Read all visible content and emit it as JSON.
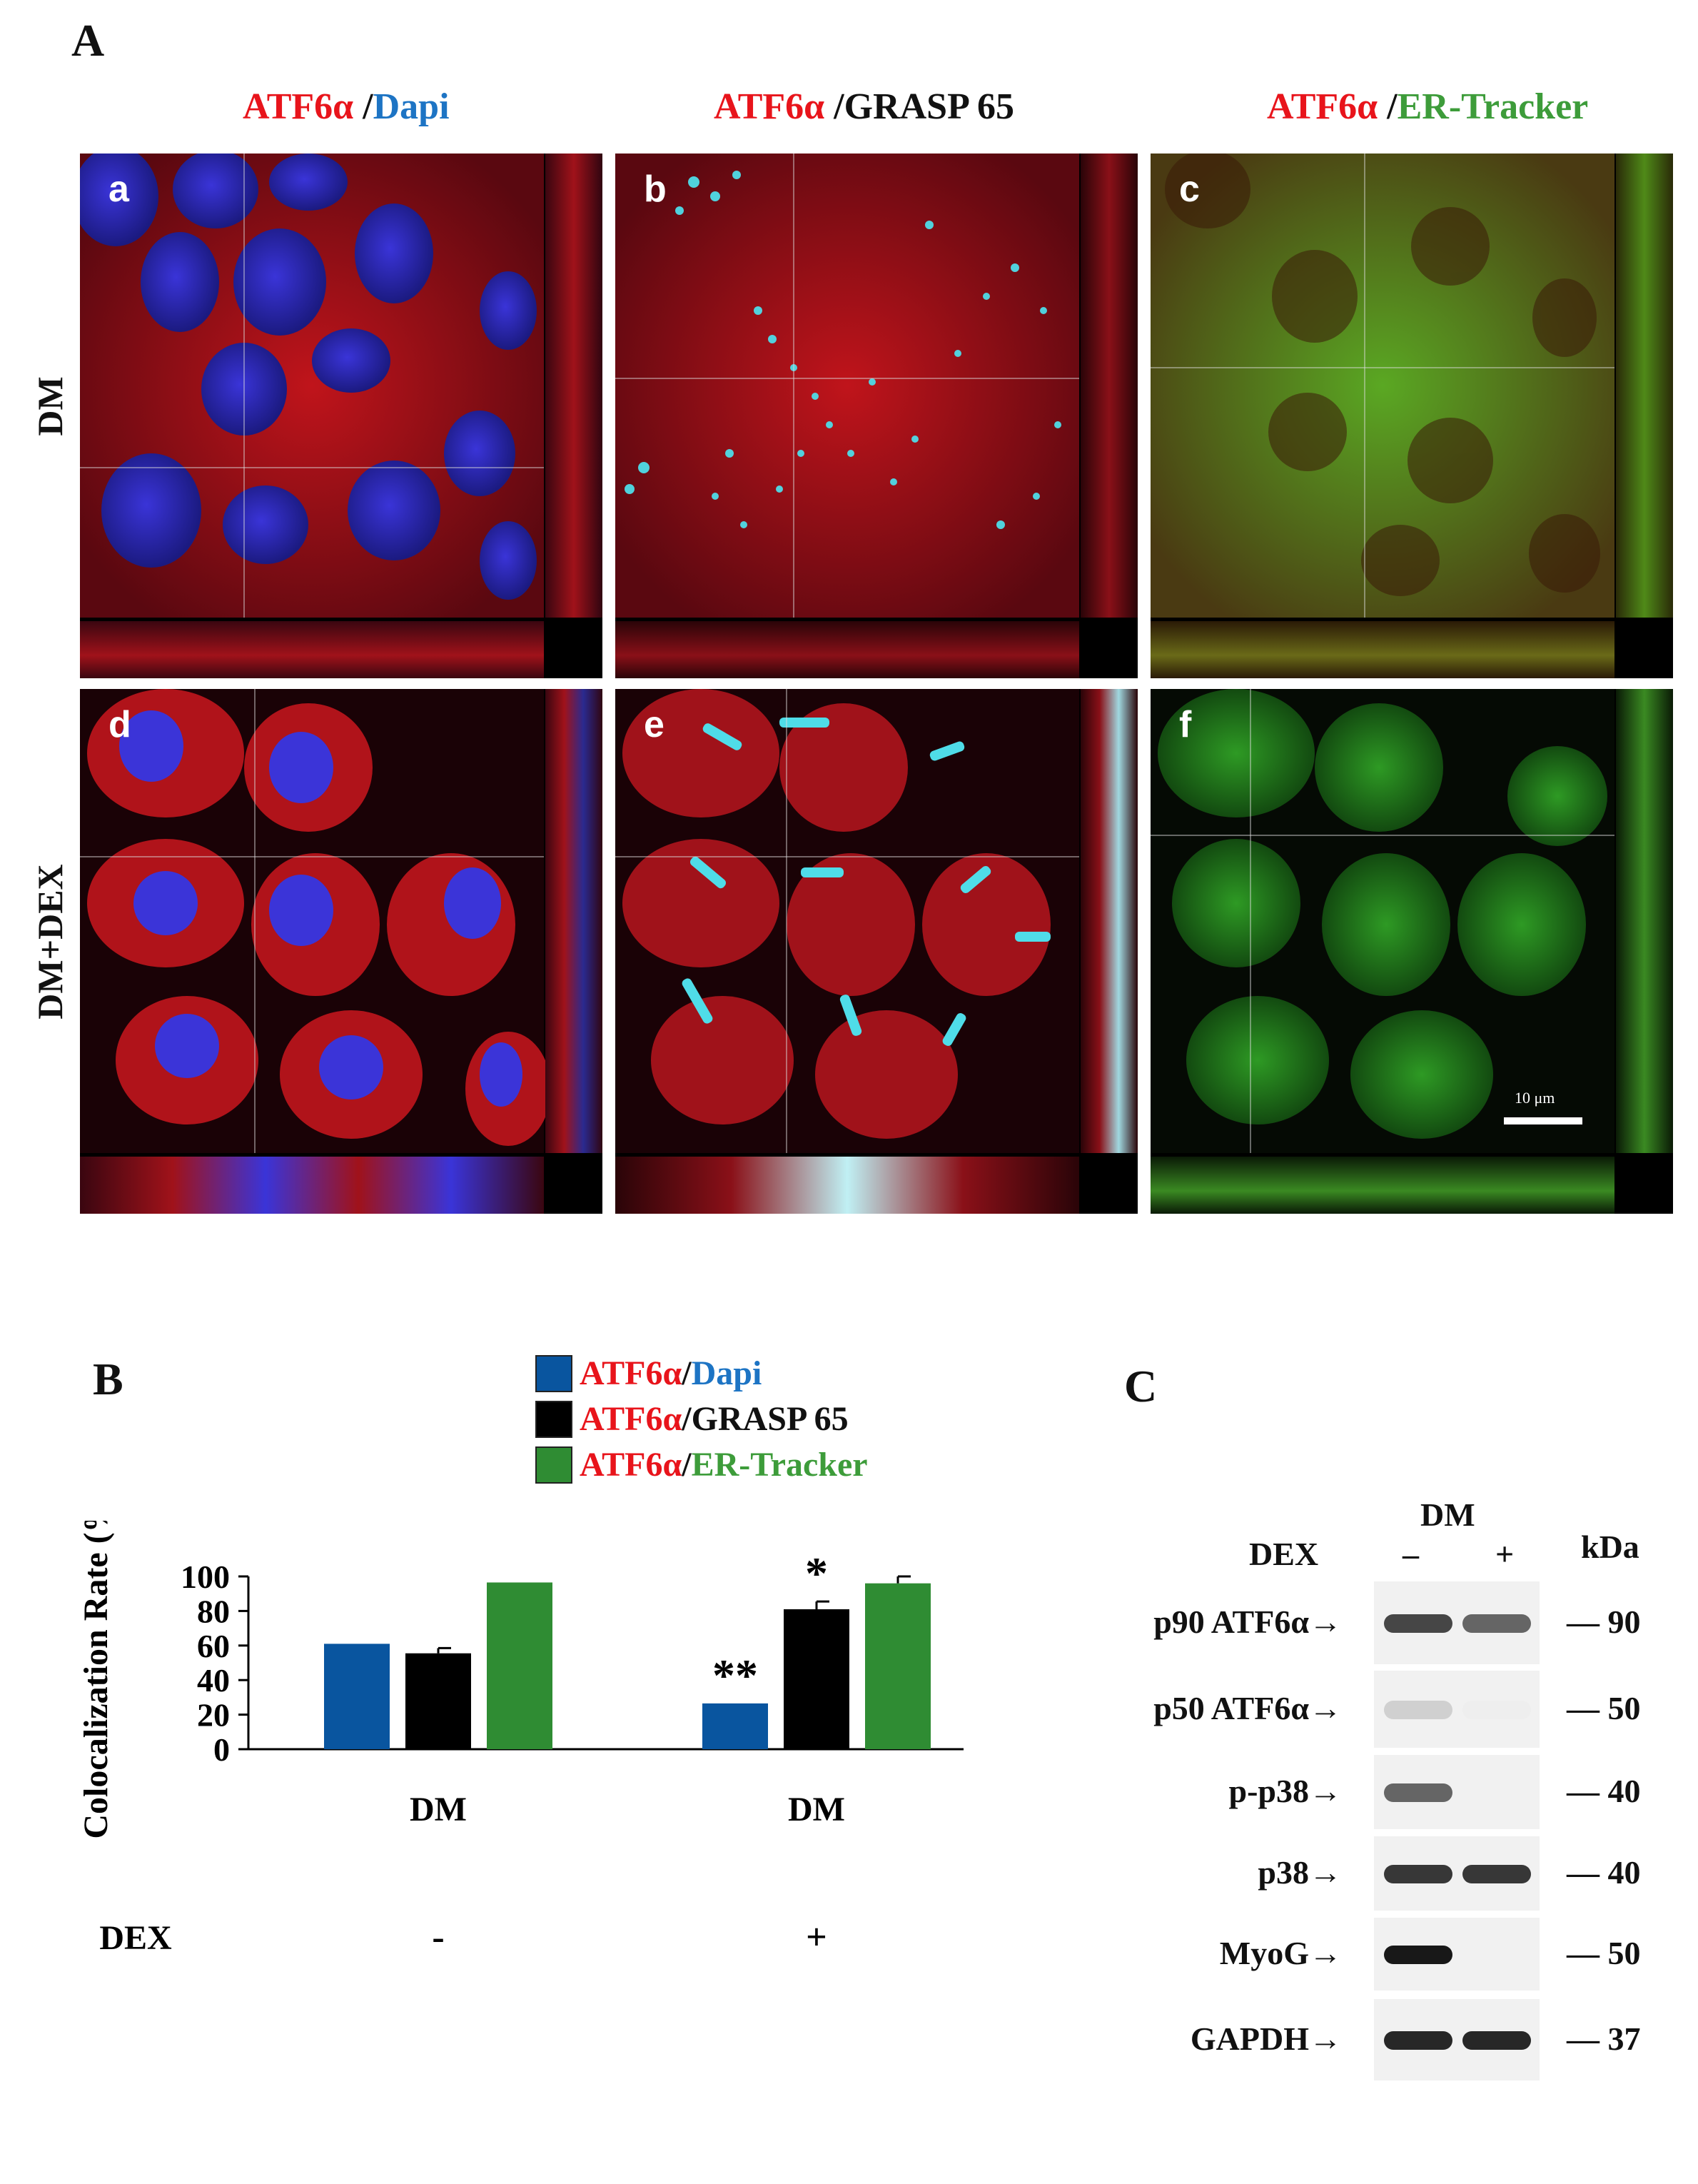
{
  "colors": {
    "red": "#e8141b",
    "blue": "#1d74c4",
    "green": "#3d9c3a",
    "bar_blue": "#09559f",
    "bar_black": "#000000",
    "bar_green": "#2f8c33",
    "cyan": "#4fdce8"
  },
  "panel_A": {
    "label": "A",
    "columns": [
      {
        "part1": "ATF6α",
        "sep": " /",
        "part2": "Dapi",
        "part2_color": "blue"
      },
      {
        "part1": "ATF6α",
        "sep": " /",
        "part2": "GRASP 65",
        "part2_color": "black"
      },
      {
        "part1": "ATF6α",
        "sep": " /",
        "part2": "ER-Tracker",
        "part2_color": "green"
      }
    ],
    "rows": [
      "DM",
      "DM+DEX"
    ],
    "tiles": [
      "a",
      "b",
      "c",
      "d",
      "e",
      "f"
    ],
    "scale_label": "10 μm"
  },
  "panel_B": {
    "label": "B",
    "legend": [
      {
        "part1": "ATF6α",
        "sep": " /",
        "part2": "Dapi",
        "swatch": "bar_blue",
        "part2_color": "blue"
      },
      {
        "part1": "ATF6α",
        "sep": " /",
        "part2": "GRASP 65",
        "swatch": "bar_black",
        "part2_color": "black"
      },
      {
        "part1": "ATF6α",
        "sep": " /",
        "part2": "ER-Tracker",
        "swatch": "bar_green",
        "part2_color": "green"
      }
    ],
    "group_labels": [
      "DM",
      "DM"
    ],
    "dex_label": "DEX",
    "dex_values": [
      "-",
      "+"
    ]
  },
  "chart_data": {
    "type": "bar",
    "categories": [
      "DM",
      "DM"
    ],
    "series": [
      {
        "name": "ATF6α /Dapi",
        "values": [
          61,
          26.5
        ],
        "errors": [
          0,
          0
        ],
        "sig": [
          "",
          "**"
        ]
      },
      {
        "name": "ATF6α /GRASP 65",
        "values": [
          55.5,
          81
        ],
        "errors": [
          3,
          4.5
        ],
        "sig": [
          "",
          "*"
        ]
      },
      {
        "name": "ATF6α /ER-Tracker",
        "values": [
          96.5,
          96
        ],
        "errors": [
          0,
          4
        ],
        "sig": [
          "",
          ""
        ]
      }
    ],
    "ylabel": "Colocalization Rate (%)",
    "ylim": [
      0,
      100
    ],
    "yticks": [
      0,
      20,
      40,
      60,
      80,
      100
    ],
    "xlabel": "",
    "grid": false
  },
  "panel_C": {
    "label": "C",
    "dm_label": "DM",
    "dex_label": "DEX",
    "minus": "–",
    "plus": "+",
    "kda_label": "kDa",
    "blots": [
      {
        "name": "p90 ATF6α",
        "kda": "— 90"
      },
      {
        "name": "p50 ATF6α",
        "kda": "— 50"
      },
      {
        "name": "p-p38",
        "kda": "— 40"
      },
      {
        "name": "p38",
        "kda": "— 40"
      },
      {
        "name": "MyoG",
        "kda": "— 50"
      },
      {
        "name": "GAPDH",
        "kda": "— 37"
      }
    ],
    "arrow": "→"
  }
}
